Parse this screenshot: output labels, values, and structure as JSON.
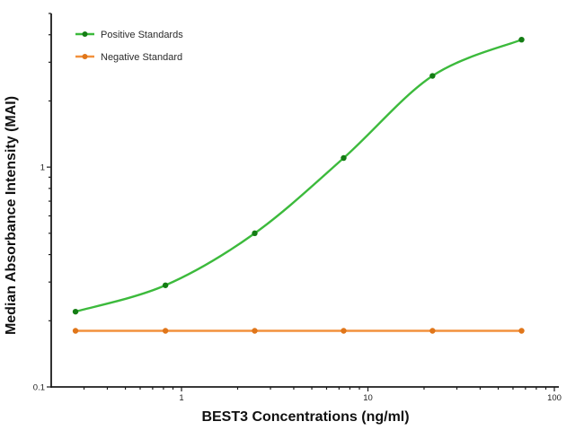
{
  "figure": {
    "background": "#ffffff"
  },
  "chart_data": {
    "type": "line",
    "title": "",
    "xlabel": "BEST3 Concentrations (ng/ml)",
    "ylabel": "Median Absorbance Intensity (MAI)",
    "x_scale": "log",
    "y_scale": "log",
    "xlim": [
      0.2,
      100
    ],
    "ylim": [
      0.1,
      5
    ],
    "x_tick_labels": [
      "1",
      "10",
      "100"
    ],
    "y_tick_labels": [
      "0.1",
      "1"
    ],
    "grid": false,
    "legend_position": "top-left",
    "x": [
      0.27,
      0.82,
      2.47,
      7.41,
      22.2,
      66.7
    ],
    "series": [
      {
        "name": "Positive Standards",
        "values": [
          0.22,
          0.29,
          0.5,
          1.1,
          2.6,
          3.8
        ],
        "color": "#3cba3c",
        "marker_color": "#147d14",
        "curve": "smooth"
      },
      {
        "name": "Negative Standard",
        "values": [
          0.18,
          0.18,
          0.18,
          0.18,
          0.18,
          0.18
        ],
        "color": "#f2913d",
        "marker_color": "#e0761a",
        "curve": "straight"
      }
    ],
    "axis_color": "#1b1b1b"
  }
}
